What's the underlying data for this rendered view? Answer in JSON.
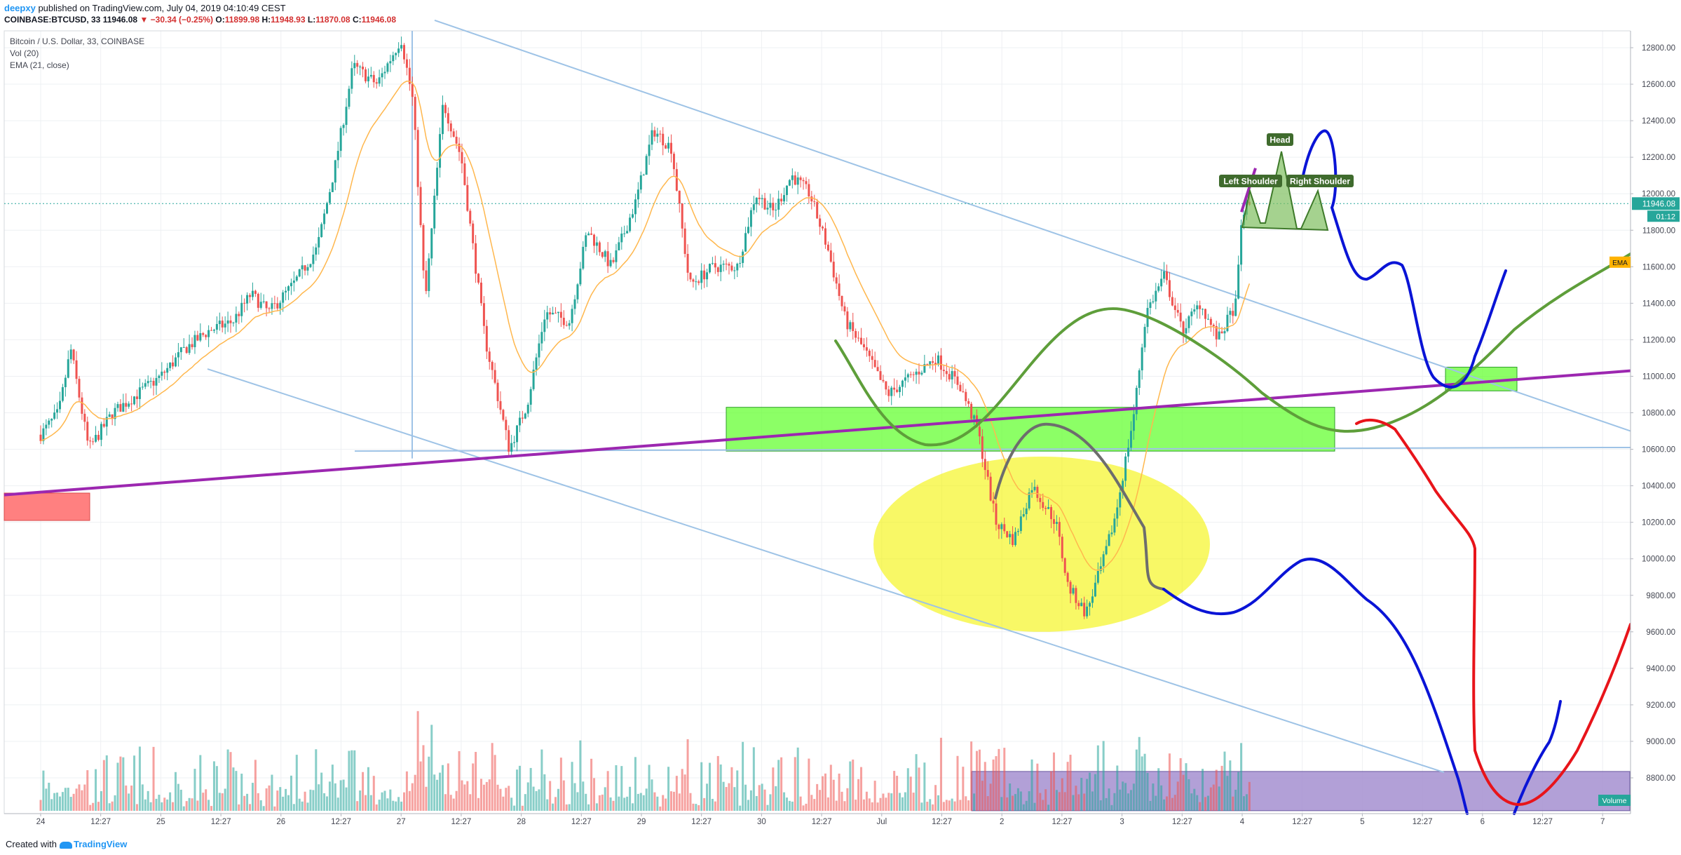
{
  "header": {
    "username": "deepxy",
    "published_text": "published on TradingView.com, July 04, 2019 04:10:49 CEST",
    "symbol": "COINBASE:BTCUSD, 33",
    "last": "11946.08",
    "change": "▼ −30.34 (−0.25%)",
    "open_label": "O:",
    "open": "11899.98",
    "high_label": "H:",
    "high": "11948.93",
    "low_label": "L:",
    "low": "11870.08",
    "close_label": "C:",
    "close": "11946.08"
  },
  "legend": {
    "title": "Bitcoin / U.S. Dollar, 33, COINBASE",
    "vol": "Vol (20)",
    "ema": "EMA (21, close)"
  },
  "footer": {
    "created_with": "Created with",
    "brand": "TradingView"
  },
  "colors": {
    "up": "#26a69a",
    "down": "#ef5350",
    "ema": "#ffb74d",
    "trend": "#9c27b0",
    "zone": "#66ff33",
    "projection_blue": "#0a14d6",
    "projection_red": "#e8141a",
    "projection_green": "#5e9e3a"
  },
  "chart_data": {
    "type": "candlestick",
    "y_ticks": [
      8800,
      9000,
      9200,
      9400,
      9600,
      9800,
      10000,
      10200,
      10400,
      10600,
      10800,
      11000,
      11200,
      11400,
      11600,
      11800,
      12000,
      12200,
      12400,
      12600,
      12800
    ],
    "y_tick_labels": [
      "8800.00",
      "9000.00",
      "9200.00",
      "9400.00",
      "9600.00",
      "9800.00",
      "10000.00",
      "10200.00",
      "10400.00",
      "10600.00",
      "10800.00",
      "11000.00",
      "11200.00",
      "11400.00",
      "11600.00",
      "11800.00",
      "12000.00",
      "12200.00",
      "12400.00",
      "12600.00",
      "12800.00"
    ],
    "ylim": [
      8580,
      12880
    ],
    "x_ticks": [
      "24",
      "12:27",
      "25",
      "12:27",
      "26",
      "12:27",
      "27",
      "12:27",
      "28",
      "12:27",
      "29",
      "12:27",
      "30",
      "12:27",
      "Jul",
      "12:27",
      "2",
      "12:27",
      "3",
      "12:27",
      "4",
      "12:27",
      "5",
      "12:27",
      "6",
      "12:27",
      "7"
    ],
    "x_range_days": [
      0,
      13.0
    ],
    "last_price_label": "11946.08",
    "countdown_label": "01:12",
    "ema_tag": "EMA",
    "volume_tag": "Volume",
    "annotations": [
      "Head",
      "Left Shoulder",
      "Right Shoulder"
    ],
    "price_path": [
      [
        0.0,
        10680
      ],
      [
        0.15,
        10800
      ],
      [
        0.25,
        11150
      ],
      [
        0.4,
        10600
      ],
      [
        0.6,
        10800
      ],
      [
        0.8,
        10900
      ],
      [
        1.0,
        11000
      ],
      [
        1.2,
        11150
      ],
      [
        1.4,
        11250
      ],
      [
        1.6,
        11300
      ],
      [
        1.75,
        11450
      ],
      [
        1.9,
        11350
      ],
      [
        2.1,
        11500
      ],
      [
        2.3,
        11700
      ],
      [
        2.45,
        12150
      ],
      [
        2.6,
        12700
      ],
      [
        2.8,
        12600
      ],
      [
        3.0,
        12850
      ],
      [
        3.1,
        12500
      ],
      [
        3.2,
        11400
      ],
      [
        3.35,
        12500
      ],
      [
        3.5,
        12200
      ],
      [
        3.7,
        11200
      ],
      [
        3.9,
        10600
      ],
      [
        4.05,
        10850
      ],
      [
        4.2,
        11350
      ],
      [
        4.4,
        11300
      ],
      [
        4.55,
        11800
      ],
      [
        4.75,
        11600
      ],
      [
        4.95,
        11950
      ],
      [
        5.1,
        12350
      ],
      [
        5.25,
        12250
      ],
      [
        5.4,
        11500
      ],
      [
        5.6,
        11600
      ],
      [
        5.8,
        11600
      ],
      [
        5.95,
        12000
      ],
      [
        6.1,
        11900
      ],
      [
        6.25,
        12100
      ],
      [
        6.4,
        12000
      ],
      [
        6.55,
        11700
      ],
      [
        6.7,
        11300
      ],
      [
        6.85,
        11150
      ],
      [
        7.05,
        10900
      ],
      [
        7.25,
        11000
      ],
      [
        7.45,
        11100
      ],
      [
        7.65,
        10950
      ],
      [
        7.8,
        10700
      ],
      [
        7.95,
        10200
      ],
      [
        8.1,
        10100
      ],
      [
        8.25,
        10400
      ],
      [
        8.45,
        10200
      ],
      [
        8.55,
        9850
      ],
      [
        8.7,
        9700
      ],
      [
        8.85,
        10000
      ],
      [
        8.95,
        10250
      ],
      [
        9.1,
        10800
      ],
      [
        9.2,
        11350
      ],
      [
        9.35,
        11550
      ],
      [
        9.5,
        11250
      ],
      [
        9.65,
        11400
      ],
      [
        9.8,
        11200
      ],
      [
        9.95,
        11400
      ],
      [
        10.0,
        11900
      ],
      [
        10.08,
        11950
      ]
    ]
  }
}
